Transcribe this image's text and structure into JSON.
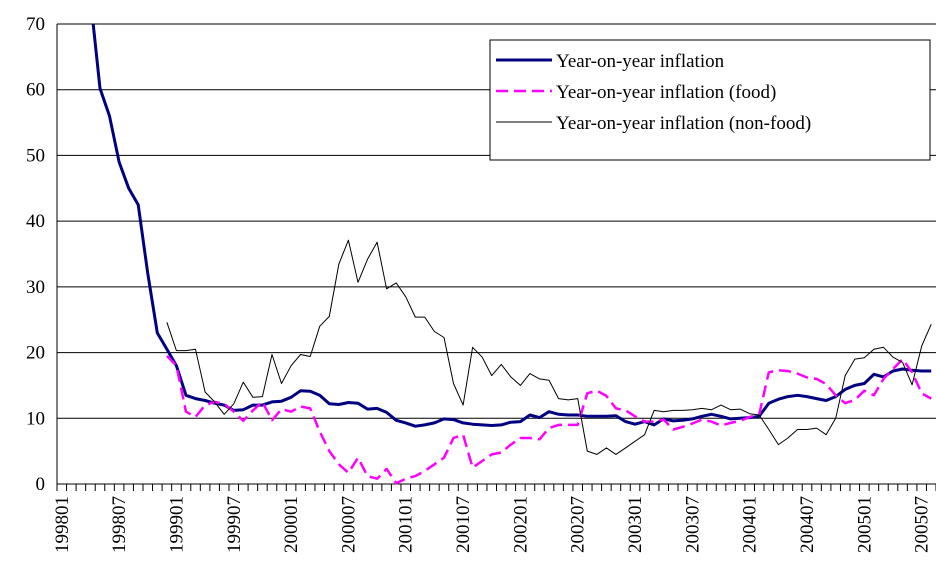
{
  "chart_data": {
    "type": "line",
    "categories": [
      "199801",
      null,
      null,
      null,
      null,
      null,
      "199807",
      null,
      null,
      null,
      null,
      null,
      "199901",
      null,
      null,
      null,
      null,
      null,
      "199907",
      null,
      null,
      null,
      null,
      null,
      "200001",
      null,
      null,
      null,
      null,
      null,
      "200007",
      null,
      null,
      null,
      null,
      null,
      "200101",
      null,
      null,
      null,
      null,
      null,
      "200107",
      null,
      null,
      null,
      null,
      null,
      "200201",
      null,
      null,
      null,
      null,
      null,
      "200207",
      null,
      null,
      null,
      null,
      null,
      "200301",
      null,
      null,
      null,
      null,
      null,
      "200307",
      null,
      null,
      null,
      null,
      null,
      "200401",
      null,
      null,
      null,
      null,
      null,
      "200407",
      null,
      null,
      null,
      null,
      null,
      "200501",
      null,
      null,
      null,
      null,
      null,
      "200507",
      null
    ],
    "series": [
      {
        "name": "Year-on-year inflation",
        "color": "#000080",
        "values": [
          null,
          null,
          null,
          74,
          60.2,
          56,
          49,
          45,
          42.5,
          32,
          23,
          20.5,
          18,
          13.5,
          13,
          12.7,
          12.3,
          12,
          11.2,
          11.3,
          12,
          12,
          12.5,
          12.6,
          13.2,
          14.2,
          14.1,
          13.5,
          12.2,
          12.1,
          12.4,
          12.3,
          11.4,
          11.5,
          10.9,
          9.7,
          9.3,
          8.8,
          9,
          9.3,
          9.9,
          9.8,
          9.3,
          9.1,
          9,
          8.9,
          9,
          9.4,
          9.5,
          10.5,
          10.1,
          11,
          10.6,
          10.5,
          10.5,
          10.3,
          10.3,
          10.3,
          10.4,
          9.5,
          9.1,
          9.5,
          9,
          9.9,
          9.6,
          9.7,
          9.9,
          10.3,
          10.6,
          10.3,
          9.9,
          10,
          10.1,
          10.3,
          12.3,
          12.9,
          13.3,
          13.5,
          13.3,
          13,
          12.7,
          13.3,
          14.4,
          15,
          15.3,
          16.7,
          16.3,
          17.2,
          17.5,
          17.3,
          17.2,
          17.2
        ]
      },
      {
        "name": "Year-on-year inflation (food)",
        "color": "#ff00ff",
        "dashed": true,
        "values": [
          null,
          null,
          null,
          null,
          null,
          null,
          null,
          null,
          null,
          null,
          null,
          19.5,
          18,
          11,
          10.2,
          12,
          12.5,
          12.2,
          11,
          9.6,
          11.2,
          12.5,
          9.7,
          11.4,
          11,
          11.8,
          11.5,
          8,
          5,
          3,
          1.7,
          4,
          1.2,
          0.8,
          2.3,
          0.1,
          0.8,
          1.2,
          2,
          3,
          4,
          7,
          7.5,
          2.5,
          3.5,
          4.5,
          4.8,
          6,
          7,
          7,
          6.8,
          8.5,
          9,
          9,
          9,
          13.8,
          14.2,
          13.4,
          11.5,
          11.2,
          10.3,
          9.5,
          9.5,
          9.8,
          8.3,
          8.7,
          9.2,
          9.8,
          9.5,
          8.9,
          9.3,
          9.6,
          10.2,
          10.6,
          17,
          17.3,
          17.2,
          16.8,
          16.2,
          16,
          15.2,
          13.5,
          12.3,
          12.8,
          14.2,
          13.5,
          16,
          17.5,
          19,
          17,
          13.8,
          13
        ]
      },
      {
        "name": "Year-on-year inflation (non-food)",
        "color": "#000000",
        "values": [
          null,
          null,
          null,
          null,
          null,
          null,
          null,
          null,
          null,
          null,
          null,
          24.6,
          20.3,
          20.3,
          20.5,
          14,
          12.5,
          10.6,
          12.2,
          15.5,
          13.2,
          13.3,
          19.7,
          15.3,
          18,
          19.7,
          19.4,
          24,
          25.5,
          33.5,
          37.1,
          30.7,
          34.2,
          36.8,
          29.7,
          30.6,
          28.5,
          25.4,
          25.4,
          23.2,
          22.3,
          15.3,
          12,
          20.8,
          19.3,
          16.5,
          18.2,
          16.3,
          15,
          16.8,
          16,
          15.8,
          13,
          12.8,
          13,
          5,
          4.5,
          5.5,
          4.5,
          5.5,
          6.5,
          7.5,
          11.2,
          11,
          11.2,
          11.2,
          11.3,
          11.5,
          11.3,
          12,
          11.3,
          11.4,
          10.7,
          10.5,
          8.3,
          6,
          7,
          8.3,
          8.3,
          8.5,
          7.5,
          10,
          16.5,
          19,
          19.2,
          20.5,
          20.8,
          19.3,
          18.5,
          15.1,
          21,
          24.3
        ]
      }
    ],
    "ylim": [
      0,
      70
    ],
    "yticks": [
      0,
      10,
      20,
      30,
      40,
      50,
      60,
      70
    ],
    "grid": true,
    "legend": "top-right"
  }
}
